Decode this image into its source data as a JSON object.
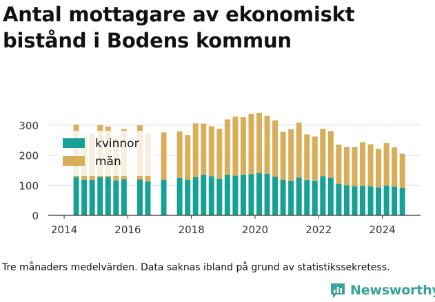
{
  "title": "Antal mottagare av ekonomiskt bistånd i Bodens kommun",
  "footnote": "Tre månaders medelvärden. Data saknas ibland på grund av statistikssekretess.",
  "brand": {
    "name": "Newsworthy"
  },
  "colors": {
    "kvinnor": "#17a096",
    "man": "#d8ae5a",
    "grid": "#dddddd",
    "text": "#333333",
    "brand": "#3aa397"
  },
  "chart_data": {
    "type": "bar",
    "stacked": true,
    "ylim": [
      0,
      350
    ],
    "yticks": [
      "0",
      "100",
      "200",
      "300"
    ],
    "xlim": [
      2013.5,
      2025.2
    ],
    "xticks": [
      "2014",
      "2016",
      "2018",
      "2020",
      "2022",
      "2024"
    ],
    "legend": {
      "position": "top-left",
      "entries": [
        {
          "key": "kvinnor",
          "label": "kvinnor"
        },
        {
          "key": "man",
          "label": "män"
        }
      ]
    },
    "periods": [
      2014.38,
      2014.63,
      2014.88,
      2015.13,
      2015.38,
      2015.63,
      2015.88,
      2016.38,
      2016.63,
      2017.13,
      2017.63,
      2017.88,
      2018.13,
      2018.38,
      2018.63,
      2018.88,
      2019.13,
      2019.38,
      2019.63,
      2019.88,
      2020.13,
      2020.38,
      2020.63,
      2020.88,
      2021.13,
      2021.38,
      2021.63,
      2021.88,
      2022.13,
      2022.38,
      2022.63,
      2022.88,
      2023.13,
      2023.38,
      2023.63,
      2023.88,
      2024.13,
      2024.38,
      2024.63
    ],
    "series": [
      {
        "name": "kvinnor",
        "key": "kvinnor",
        "values": [
          127,
          118,
          117,
          127,
          127,
          116,
          121,
          119,
          113,
          118,
          124,
          118,
          127,
          135,
          130,
          122,
          135,
          132,
          135,
          137,
          141,
          138,
          129,
          118,
          115,
          126,
          117,
          115,
          130,
          125,
          105,
          100,
          97,
          98,
          96,
          93,
          99,
          95,
          92
        ]
      },
      {
        "name": "män",
        "key": "man",
        "values": [
          175,
          148,
          153,
          173,
          168,
          146,
          166,
          180,
          161,
          158,
          155,
          149,
          179,
          170,
          166,
          166,
          184,
          196,
          192,
          200,
          200,
          193,
          187,
          160,
          171,
          182,
          152,
          147,
          158,
          155,
          130,
          127,
          130,
          145,
          140,
          128,
          141,
          131,
          113
        ]
      }
    ]
  }
}
